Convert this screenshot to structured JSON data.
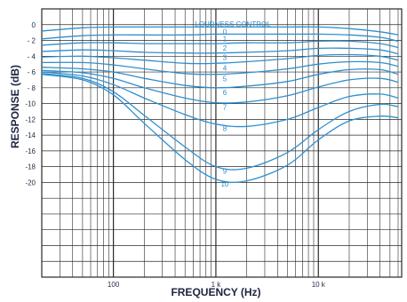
{
  "chart_data": {
    "type": "line",
    "xlabel": "FREQUENCY (Hz)",
    "ylabel": "RESPONSE (dB)",
    "x_scale": "log",
    "xlim": [
      20,
      65000
    ],
    "ylim": [
      -32,
      2
    ],
    "grid": true,
    "y_tick_labels": [
      {
        "value": 0,
        "label": "0"
      },
      {
        "value": -2,
        "label": "- 2"
      },
      {
        "value": -4,
        "label": "- 4"
      },
      {
        "value": -6,
        "label": "- 6"
      },
      {
        "value": -8,
        "label": "- 8"
      },
      {
        "value": -10,
        "label": "-10"
      },
      {
        "value": -12,
        "label": "-12"
      },
      {
        "value": -14,
        "label": "-14"
      },
      {
        "value": -16,
        "label": "-16"
      },
      {
        "value": -18,
        "label": "-18"
      },
      {
        "value": -20,
        "label": "-20"
      }
    ],
    "x_tick_labels": [
      {
        "value": 100,
        "label": "100"
      },
      {
        "value": 1000,
        "label": "1 k"
      },
      {
        "value": 10000,
        "label": "10 k"
      }
    ],
    "legend_title": "LOUDNESS CONTROL",
    "curve_color": "#2e8fcf",
    "grid_color": "#2a2a2a",
    "x": [
      20,
      50,
      100,
      200,
      500,
      1000,
      2000,
      5000,
      10000,
      20000,
      40000,
      60000
    ],
    "series": [
      {
        "name": "0",
        "label_at": 1000,
        "values": [
          -0.8,
          -0.4,
          -0.3,
          -0.3,
          -0.3,
          -0.3,
          -0.3,
          -0.3,
          -0.3,
          -0.5,
          -0.9,
          -1.3
        ]
      },
      {
        "name": "1",
        "label_at": 1000,
        "values": [
          -1.8,
          -1.4,
          -1.3,
          -1.3,
          -1.3,
          -1.2,
          -1.2,
          -1.2,
          -1.2,
          -1.3,
          -1.6,
          -2.1
        ]
      },
      {
        "name": "2",
        "label_at": 1000,
        "values": [
          -2.6,
          -2.3,
          -2.3,
          -2.4,
          -2.4,
          -2.4,
          -2.3,
          -2.3,
          -2.1,
          -2.1,
          -2.4,
          -2.9
        ]
      },
      {
        "name": "3",
        "label_at": 1000,
        "values": [
          -3.4,
          -3.2,
          -3.3,
          -3.5,
          -3.6,
          -3.6,
          -3.5,
          -3.3,
          -3.0,
          -3.0,
          -3.2,
          -3.7
        ]
      },
      {
        "name": "4",
        "label_at": 1000,
        "values": [
          -4.1,
          -4.0,
          -4.2,
          -4.5,
          -4.9,
          -4.9,
          -4.7,
          -4.3,
          -3.9,
          -3.8,
          -4.0,
          -4.5
        ]
      },
      {
        "name": "5",
        "label_at": 1000,
        "values": [
          -4.8,
          -4.8,
          -5.1,
          -5.6,
          -6.2,
          -6.3,
          -6.1,
          -5.6,
          -5.0,
          -4.7,
          -4.8,
          -5.3
        ]
      },
      {
        "name": "6",
        "label_at": 1000,
        "values": [
          -5.4,
          -5.6,
          -6.0,
          -6.8,
          -7.7,
          -8.0,
          -7.8,
          -7.2,
          -6.3,
          -5.7,
          -5.7,
          -6.3
        ]
      },
      {
        "name": "7",
        "label_at": 1000,
        "values": [
          -5.8,
          -6.1,
          -6.8,
          -8.0,
          -9.3,
          -9.9,
          -9.8,
          -9.0,
          -7.9,
          -7.0,
          -6.8,
          -7.3
        ]
      },
      {
        "name": "8",
        "label_at": 1000,
        "values": [
          -6.0,
          -6.5,
          -7.6,
          -9.3,
          -11.4,
          -12.6,
          -12.9,
          -12.0,
          -10.5,
          -9.1,
          -8.8,
          -9.3
        ]
      },
      {
        "name": "9",
        "label_at": 1000,
        "values": [
          -6.2,
          -6.8,
          -8.5,
          -11.5,
          -15.5,
          -18.0,
          -18.2,
          -16.2,
          -13.3,
          -11.0,
          -10.1,
          -10.4
        ]
      },
      {
        "name": "10",
        "label_at": 1000,
        "values": [
          -6.3,
          -7.0,
          -8.9,
          -12.5,
          -17.1,
          -19.6,
          -19.8,
          -17.8,
          -14.6,
          -12.2,
          -11.6,
          -11.8
        ]
      }
    ]
  }
}
